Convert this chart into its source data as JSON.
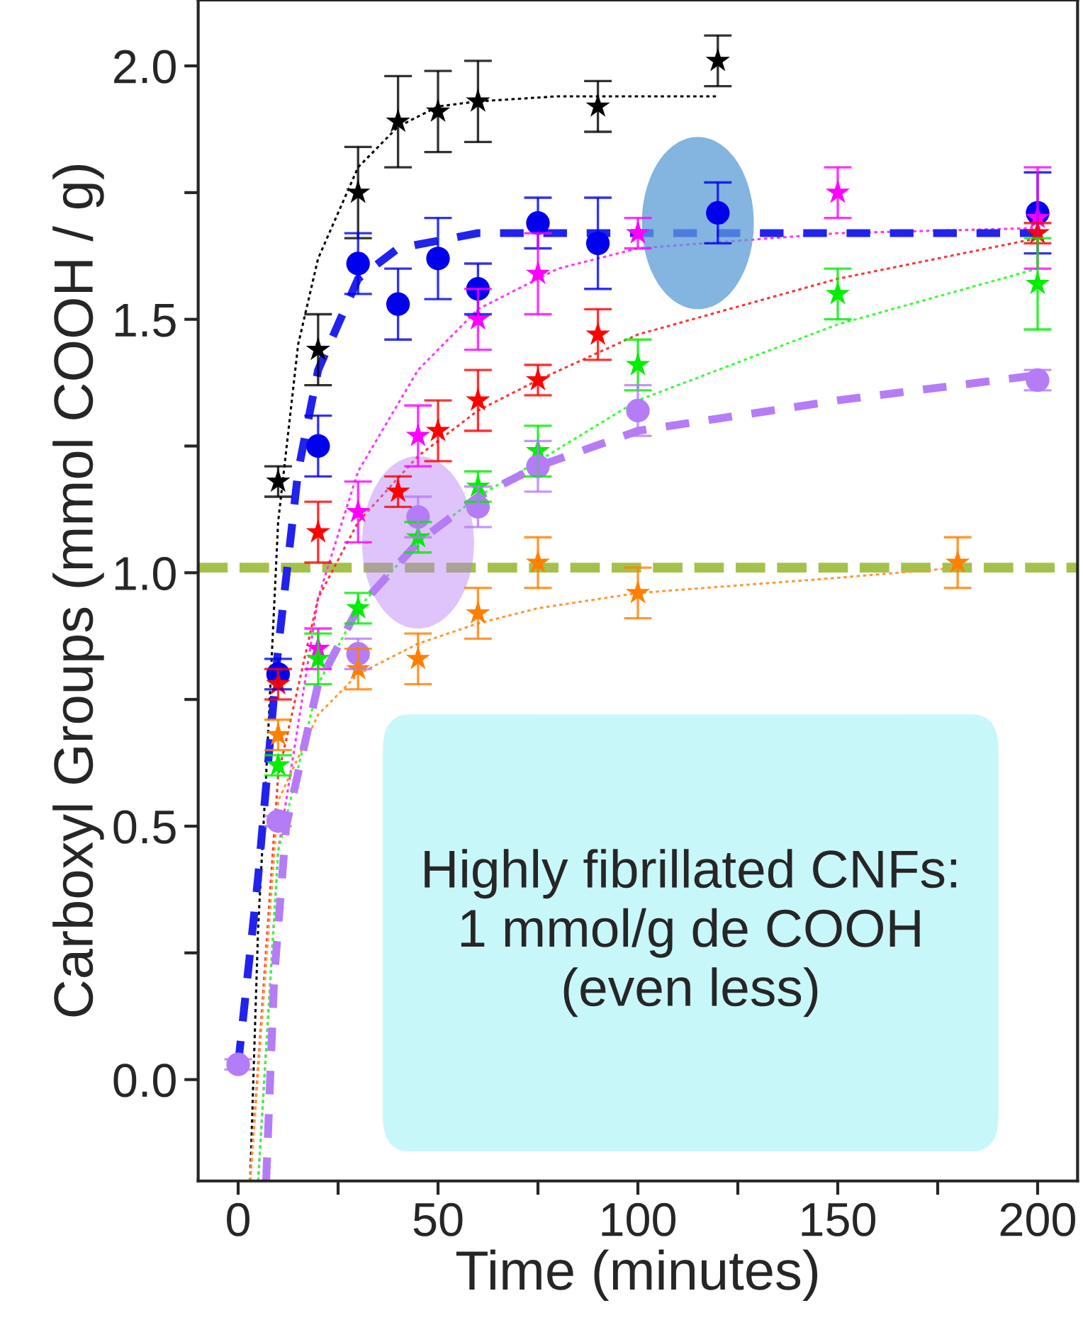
{
  "chart_data": {
    "type": "scatter",
    "xlabel": "Time (minutes)",
    "ylabel": "Carboxyl Groups (mmol COOH / g)",
    "xlim": [
      -10,
      210
    ],
    "ylim": [
      -0.2,
      2.13
    ],
    "xticks": [
      0,
      {
        "value": 25,
        "label": null
      },
      50,
      {
        "value": 75,
        "label": null
      },
      100,
      {
        "value": 125,
        "label": null
      },
      150,
      {
        "value": 175,
        "label": null
      },
      200
    ],
    "yticks": [
      {
        "value": 0,
        "label": "0.0"
      },
      {
        "value": 0.25,
        "label": null
      },
      {
        "value": 0.5,
        "label": "0.5"
      },
      {
        "value": 0.75,
        "label": null
      },
      {
        "value": 1,
        "label": "1.0"
      },
      {
        "value": 1.25,
        "label": null
      },
      {
        "value": 1.5,
        "label": "1.5"
      },
      {
        "value": 1.75,
        "label": null
      },
      {
        "value": 2,
        "label": "2.0"
      }
    ],
    "grid": false,
    "legend": false,
    "series": [
      {
        "type": "line",
        "color": "#000000",
        "line_style": "dotted",
        "x": [
          3,
          5,
          7,
          10,
          15,
          20,
          30,
          40,
          50,
          60,
          80,
          120
        ],
        "values": [
          -0.2,
          0.3,
          0.6,
          1.1,
          1.45,
          1.62,
          1.8,
          1.88,
          1.92,
          1.93,
          1.94,
          1.94
        ]
      },
      {
        "type": "line",
        "color": "#ff33ff",
        "line_style": "dotted",
        "x": [
          5,
          10,
          20,
          30,
          45,
          60,
          80,
          100,
          150,
          200
        ],
        "values": [
          -0.2,
          0.45,
          0.95,
          1.2,
          1.4,
          1.52,
          1.6,
          1.64,
          1.67,
          1.68
        ]
      },
      {
        "type": "line",
        "color": "#ff3333",
        "line_style": "dotted",
        "x": [
          3,
          10,
          20,
          30,
          45,
          60,
          75,
          100,
          150,
          200
        ],
        "values": [
          -0.2,
          0.6,
          0.95,
          1.1,
          1.23,
          1.32,
          1.38,
          1.47,
          1.58,
          1.66
        ]
      },
      {
        "type": "line",
        "color": "#33ff33",
        "line_style": "dotted",
        "x": [
          5,
          10,
          20,
          30,
          45,
          60,
          75,
          100,
          150,
          200
        ],
        "values": [
          -0.2,
          0.45,
          0.78,
          0.93,
          1.06,
          1.15,
          1.22,
          1.34,
          1.49,
          1.6
        ]
      },
      {
        "type": "line",
        "color": "#ff9933",
        "line_style": "dotted",
        "x": [
          3,
          10,
          20,
          30,
          45,
          60,
          75,
          100,
          150,
          180
        ],
        "values": [
          -0.2,
          0.55,
          0.72,
          0.8,
          0.86,
          0.9,
          0.93,
          0.96,
          0.99,
          1.01
        ]
      },
      {
        "type": "line",
        "color": "#2222ee",
        "line_style": "dashed",
        "x": [
          0,
          5,
          10,
          15,
          20,
          30,
          40,
          60,
          100,
          200
        ],
        "values": [
          0.03,
          0.4,
          0.85,
          1.2,
          1.4,
          1.58,
          1.64,
          1.67,
          1.67,
          1.67
        ]
      },
      {
        "type": "line",
        "color": "#b57cf7",
        "line_style": "dashed",
        "x": [
          7,
          9,
          12,
          20,
          30,
          45,
          60,
          75,
          100,
          150,
          200
        ],
        "values": [
          -0.2,
          0.2,
          0.5,
          0.78,
          0.93,
          1.06,
          1.15,
          1.21,
          1.28,
          1.34,
          1.39
        ]
      },
      {
        "color": "#000000",
        "marker": "star",
        "x": [
          10,
          20,
          30,
          40,
          50,
          60,
          90,
          120
        ],
        "values": [
          1.18,
          1.44,
          1.75,
          1.89,
          1.91,
          1.93,
          1.92,
          2.01
        ],
        "errors": [
          0.03,
          0.07,
          0.09,
          0.09,
          0.08,
          0.08,
          0.05,
          0.05
        ]
      },
      {
        "color": "#0000ee",
        "marker": "circle",
        "x": [
          10,
          20,
          30,
          40,
          50,
          60,
          75,
          90,
          120,
          200
        ],
        "values": [
          0.8,
          1.25,
          1.61,
          1.53,
          1.62,
          1.56,
          1.69,
          1.65,
          1.71,
          1.71
        ],
        "errors": [
          0.03,
          0.06,
          0.06,
          0.07,
          0.08,
          0.05,
          0.05,
          0.09,
          0.06,
          0.08
        ]
      },
      {
        "color": "#ff00ff",
        "marker": "star",
        "x": [
          20,
          30,
          45,
          60,
          75,
          100,
          150,
          200
        ],
        "values": [
          0.85,
          1.12,
          1.27,
          1.5,
          1.59,
          1.67,
          1.75,
          1.7
        ],
        "errors": [
          0.04,
          0.06,
          0.06,
          0.06,
          0.08,
          0.03,
          0.05,
          0.1
        ]
      },
      {
        "color": "#ff0000",
        "marker": "star",
        "x": [
          10,
          20,
          40,
          50,
          60,
          75,
          90,
          200
        ],
        "values": [
          0.78,
          1.08,
          1.16,
          1.28,
          1.34,
          1.38,
          1.47,
          1.67
        ],
        "errors": [
          0.03,
          0.06,
          0.03,
          0.06,
          0.06,
          0.03,
          0.05,
          0.02
        ]
      },
      {
        "color": "#00ee00",
        "marker": "star",
        "x": [
          10,
          20,
          30,
          45,
          60,
          75,
          100,
          150,
          200
        ],
        "values": [
          0.62,
          0.83,
          0.93,
          1.07,
          1.17,
          1.24,
          1.41,
          1.55,
          1.57
        ],
        "errors": [
          0.02,
          0.05,
          0.03,
          0.03,
          0.03,
          0.05,
          0.05,
          0.05,
          0.09
        ]
      },
      {
        "color": "#b57cf7",
        "marker": "circle",
        "x": [
          0,
          10,
          30,
          45,
          60,
          75,
          100,
          200
        ],
        "values": [
          0.03,
          0.51,
          0.84,
          1.11,
          1.13,
          1.21,
          1.32,
          1.38
        ],
        "errors": [
          0.01,
          0.01,
          0.03,
          0.04,
          0.04,
          0.05,
          0.05,
          0.02
        ]
      },
      {
        "color": "#ff8000",
        "marker": "star",
        "x": [
          10,
          30,
          45,
          60,
          75,
          100,
          180
        ],
        "values": [
          0.68,
          0.81,
          0.83,
          0.92,
          1.02,
          0.96,
          1.02
        ],
        "errors": [
          0.03,
          0.04,
          0.05,
          0.05,
          0.05,
          0.05,
          0.05
        ]
      }
    ],
    "ref_lines": [
      {
        "axis": "y",
        "value": 1.01,
        "color": "#a4c24b",
        "line_style": "dashed"
      }
    ],
    "annotations": [
      "Highly fibrillated CNFs:\n1 mmol/g de COOH\n(even less)"
    ]
  }
}
